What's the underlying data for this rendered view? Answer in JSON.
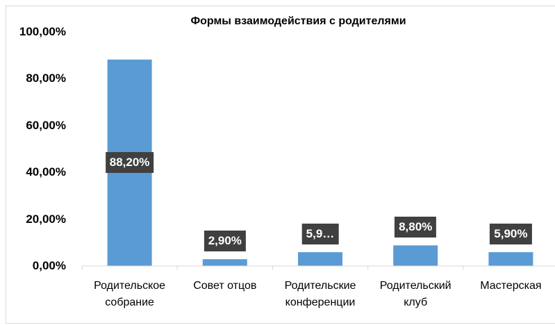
{
  "chart_data": {
    "type": "bar",
    "title": "Формы взаимодействия с родителями",
    "categories": [
      "Родительское собрание",
      "Совет отцов",
      "Родительские конференции",
      "Родительский клуб",
      "Мастерская"
    ],
    "values": [
      88.2,
      2.9,
      5.9,
      8.8,
      5.9
    ],
    "value_labels": [
      "88,20%",
      "2,90%",
      "5,9…",
      "8,80%",
      "5,90%"
    ],
    "color": "#5b9bd5",
    "ylim": [
      0,
      100
    ],
    "yticks": [
      {
        "value": 0,
        "label": "0,00%"
      },
      {
        "value": 20,
        "label": "20,00%"
      },
      {
        "value": 40,
        "label": "40,00%"
      },
      {
        "value": 60,
        "label": "60,00%"
      },
      {
        "value": 80,
        "label": "80,00%"
      },
      {
        "value": 100,
        "label": "100,00%"
      }
    ],
    "grid": false
  }
}
